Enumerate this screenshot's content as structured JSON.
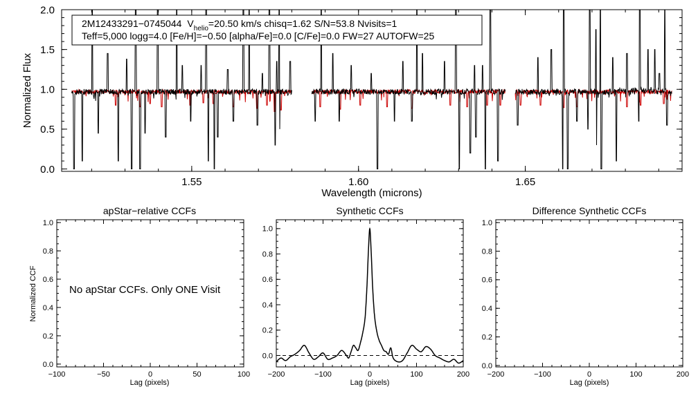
{
  "colors": {
    "observed": "#000000",
    "synthetic": "#cc0000",
    "axis": "#000000",
    "background": "#ffffff"
  },
  "info_box": {
    "star": "2M12433291−0745044",
    "v_prefix": "V",
    "v_sub": "helio",
    "v_value": "=20.50 km/s  chisq=1.62  S/N=53.8  Nvisits=1",
    "line2": "Teff=5,000 logg=4.0 [Fe/H]=−0.50 [alpha/Fe]=0.0 [C/Fe]=0.0 FW=27 AUTOFW=25"
  },
  "note_text": "No apStar CCFs.  Only ONE Visit",
  "chart_data": [
    {
      "id": "spectrum",
      "type": "line",
      "title": "",
      "xlabel": "Wavelength (microns)",
      "ylabel": "Normalized Flux",
      "xlim": [
        1.511,
        1.697
      ],
      "ylim": [
        -0.03,
        2.0
      ],
      "xticks": [
        1.55,
        1.6,
        1.65
      ],
      "xtick_labels": [
        "1.55",
        "1.60",
        "1.65"
      ],
      "yticks": [
        0.0,
        0.5,
        1.0,
        1.5,
        2.0
      ],
      "ytick_labels": [
        "0.0",
        "0.5",
        "1.0",
        "1.5",
        "2.0"
      ],
      "grid": false,
      "chips": [
        [
          1.514,
          1.58
        ],
        [
          1.586,
          1.644
        ],
        [
          1.647,
          1.694
        ]
      ],
      "continuum": 0.97,
      "series": [
        {
          "role": "observed",
          "color": "#000000",
          "absorption_lines": [
            [
              1.5147,
              0.0
            ],
            [
              1.5172,
              0.1
            ],
            [
              1.522,
              0.45
            ],
            [
              1.528,
              0.1
            ],
            [
              1.532,
              0.0
            ],
            [
              1.5345,
              0.0
            ],
            [
              1.536,
              0.45
            ],
            [
              1.5422,
              0.4
            ],
            [
              1.5497,
              0.6
            ],
            [
              1.555,
              0.1
            ],
            [
              1.5568,
              0.0
            ],
            [
              1.5578,
              0.4
            ],
            [
              1.5625,
              0.6
            ],
            [
              1.5697,
              0.55
            ],
            [
              1.5733,
              0.0
            ],
            [
              1.575,
              0.3
            ],
            [
              1.5763,
              0.5
            ],
            [
              1.587,
              0.6
            ],
            [
              1.5942,
              0.6
            ],
            [
              1.6057,
              0.0
            ],
            [
              1.6108,
              0.6
            ],
            [
              1.616,
              0.6
            ],
            [
              1.6302,
              0.0
            ],
            [
              1.6335,
              0.2
            ],
            [
              1.6352,
              0.4
            ],
            [
              1.638,
              0.0
            ],
            [
              1.6418,
              0.1
            ],
            [
              1.6477,
              0.55
            ],
            [
              1.6538,
              0.55
            ],
            [
              1.6613,
              0.0
            ],
            [
              1.6627,
              0.0
            ],
            [
              1.6655,
              0.6
            ],
            [
              1.6688,
              0.5
            ],
            [
              1.6713,
              0.3
            ],
            [
              1.6728,
              0.0
            ],
            [
              1.6773,
              0.1
            ],
            [
              1.684,
              0.6
            ],
            [
              1.6925,
              0.55
            ]
          ],
          "emission_spikes": [
            [
              1.5202,
              2.0
            ],
            [
              1.5248,
              1.45
            ],
            [
              1.5305,
              1.38
            ],
            [
              1.5332,
              2.0
            ],
            [
              1.5398,
              2.0
            ],
            [
              1.5455,
              2.0
            ],
            [
              1.5472,
              1.3
            ],
            [
              1.5528,
              1.3
            ],
            [
              1.5543,
              2.0
            ],
            [
              1.5608,
              1.25
            ],
            [
              1.5655,
              2.0
            ],
            [
              1.5672,
              2.0
            ],
            [
              1.5712,
              1.2
            ],
            [
              1.5733,
              2.0
            ],
            [
              1.5755,
              1.35
            ],
            [
              1.5762,
              2.0
            ],
            [
              1.5795,
              1.35
            ],
            [
              1.5888,
              2.0
            ],
            [
              1.5923,
              1.45
            ],
            [
              1.5978,
              1.3
            ],
            [
              1.6038,
              1.2
            ],
            [
              1.6133,
              1.35
            ],
            [
              1.6175,
              2.0
            ],
            [
              1.6192,
              1.45
            ],
            [
              1.6258,
              1.35
            ],
            [
              1.6292,
              2.0
            ],
            [
              1.6348,
              1.3
            ],
            [
              1.6372,
              1.3
            ],
            [
              1.6395,
              2.0
            ],
            [
              1.6538,
              1.4
            ],
            [
              1.6578,
              1.5
            ],
            [
              1.6615,
              2.0
            ],
            [
              1.6693,
              2.0
            ],
            [
              1.6712,
              1.75
            ],
            [
              1.6725,
              2.0
            ],
            [
              1.6762,
              1.4
            ],
            [
              1.6805,
              1.45
            ],
            [
              1.6843,
              2.0
            ],
            [
              1.6868,
              1.5
            ],
            [
              1.6888,
              1.5
            ],
            [
              1.6918,
              2.0
            ],
            [
              1.6902,
              1.2
            ]
          ]
        },
        {
          "role": "synthetic",
          "color": "#cc0000",
          "absorption_lines": [
            [
              1.5272,
              0.8
            ],
            [
              1.5345,
              0.78
            ],
            [
              1.5375,
              0.82
            ],
            [
              1.541,
              0.78
            ],
            [
              1.5495,
              0.8
            ],
            [
              1.5535,
              0.83
            ],
            [
              1.5565,
              0.82
            ],
            [
              1.5625,
              0.78
            ],
            [
              1.5695,
              0.76
            ],
            [
              1.5725,
              0.8
            ],
            [
              1.5748,
              0.72
            ],
            [
              1.5768,
              0.74
            ],
            [
              1.5885,
              0.78
            ],
            [
              1.5945,
              0.75
            ],
            [
              1.6005,
              0.8
            ],
            [
              1.6085,
              0.78
            ],
            [
              1.616,
              0.76
            ],
            [
              1.6275,
              0.8
            ],
            [
              1.6325,
              0.78
            ],
            [
              1.6385,
              0.8
            ],
            [
              1.6425,
              0.8
            ],
            [
              1.6485,
              0.8
            ],
            [
              1.6545,
              0.8
            ],
            [
              1.6615,
              0.77
            ],
            [
              1.6655,
              0.78
            ],
            [
              1.6805,
              0.78
            ],
            [
              1.6845,
              0.8
            ],
            [
              1.6915,
              0.82
            ]
          ]
        }
      ]
    },
    {
      "id": "apstar_ccf",
      "type": "line",
      "title": "apStar−relative CCFs",
      "xlabel": "Lag (pixels)",
      "ylabel": "Normalized CCF",
      "xlim": [
        -100,
        100
      ],
      "ylim": [
        -0.02,
        1.02
      ],
      "xticks": [
        -100,
        -50,
        0,
        50,
        100
      ],
      "xtick_labels": [
        "−100",
        "−50",
        "0",
        "50",
        "100"
      ],
      "yticks": [
        0.0,
        0.2,
        0.4,
        0.6,
        0.8,
        1.0
      ],
      "ytick_labels": [
        "0.0",
        "0.2",
        "0.4",
        "0.6",
        "0.8",
        "1.0"
      ],
      "grid": false,
      "series": []
    },
    {
      "id": "synthetic_ccf",
      "type": "line",
      "title": "Synthetic CCFs",
      "xlabel": "Lag (pixels)",
      "ylabel": "",
      "xlim": [
        -200,
        200
      ],
      "ylim": [
        -0.09,
        1.07
      ],
      "xticks": [
        -200,
        -100,
        0,
        100,
        200
      ],
      "xtick_labels": [
        "−200",
        "−100",
        "0",
        "100",
        "200"
      ],
      "yticks": [
        0.0,
        0.2,
        0.4,
        0.6,
        0.8,
        1.0
      ],
      "ytick_labels": [
        "0.0",
        "0.2",
        "0.4",
        "0.6",
        "0.8",
        "1.0"
      ],
      "grid": false,
      "zero_line": true,
      "series": [
        {
          "color": "#000000",
          "x": [
            -200,
            -190,
            -180,
            -170,
            -160,
            -150,
            -140,
            -130,
            -120,
            -110,
            -100,
            -90,
            -80,
            -70,
            -60,
            -50,
            -45,
            -40,
            -35,
            -30,
            -25,
            -20,
            -15,
            -10,
            -6,
            -3,
            0,
            3,
            6,
            10,
            15,
            20,
            25,
            30,
            35,
            40,
            45,
            50,
            60,
            70,
            80,
            90,
            100,
            110,
            120,
            130,
            140,
            150,
            160,
            170,
            180,
            190,
            200
          ],
          "y": [
            -0.05,
            -0.02,
            -0.04,
            -0.01,
            0.01,
            0.04,
            0.08,
            0.02,
            -0.03,
            -0.01,
            0.02,
            -0.03,
            -0.02,
            0.0,
            0.04,
            0.0,
            -0.02,
            0.03,
            0.08,
            0.06,
            0.04,
            0.1,
            0.18,
            0.3,
            0.55,
            0.82,
            1.0,
            0.82,
            0.55,
            0.32,
            0.19,
            0.12,
            0.08,
            0.04,
            0.03,
            0.01,
            0.06,
            -0.02,
            -0.05,
            -0.04,
            0.02,
            0.08,
            0.05,
            0.03,
            0.07,
            0.05,
            0.0,
            -0.02,
            -0.04,
            -0.05,
            -0.03,
            -0.06,
            -0.04
          ]
        }
      ]
    },
    {
      "id": "difference_ccf",
      "type": "line",
      "title": "Difference Synthetic CCFs",
      "xlabel": "Lag (pixels)",
      "ylabel": "",
      "xlim": [
        -200,
        200
      ],
      "ylim": [
        -0.01,
        1.02
      ],
      "xticks": [
        -200,
        -100,
        0,
        100,
        200
      ],
      "xtick_labels": [
        "−200",
        "−100",
        "0",
        "100",
        "200"
      ],
      "yticks": [
        0.0,
        0.2,
        0.4,
        0.6,
        0.8,
        1.0
      ],
      "ytick_labels": [
        "0.0",
        "0.2",
        "0.4",
        "0.6",
        "0.8",
        "1.0"
      ],
      "grid": false,
      "series": []
    }
  ]
}
